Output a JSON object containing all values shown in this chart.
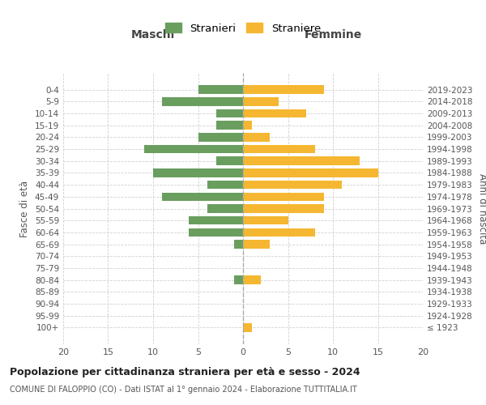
{
  "age_groups": [
    "100+",
    "95-99",
    "90-94",
    "85-89",
    "80-84",
    "75-79",
    "70-74",
    "65-69",
    "60-64",
    "55-59",
    "50-54",
    "45-49",
    "40-44",
    "35-39",
    "30-34",
    "25-29",
    "20-24",
    "15-19",
    "10-14",
    "5-9",
    "0-4"
  ],
  "birth_years": [
    "≤ 1923",
    "1924-1928",
    "1929-1933",
    "1934-1938",
    "1939-1943",
    "1944-1948",
    "1949-1953",
    "1954-1958",
    "1959-1963",
    "1964-1968",
    "1969-1973",
    "1974-1978",
    "1979-1983",
    "1984-1988",
    "1989-1993",
    "1994-1998",
    "1999-2003",
    "2004-2008",
    "2009-2013",
    "2014-2018",
    "2019-2023"
  ],
  "maschi": [
    0,
    0,
    0,
    0,
    1,
    0,
    0,
    1,
    6,
    6,
    4,
    9,
    4,
    10,
    3,
    11,
    5,
    3,
    3,
    9,
    5
  ],
  "femmine": [
    1,
    0,
    0,
    0,
    2,
    0,
    0,
    3,
    8,
    5,
    9,
    9,
    11,
    15,
    13,
    8,
    3,
    1,
    7,
    4,
    9
  ],
  "color_maschi": "#6a9e5f",
  "color_femmine": "#f5b731",
  "background_color": "#ffffff",
  "grid_color": "#cccccc",
  "title": "Popolazione per cittadinanza straniera per età e sesso - 2024",
  "subtitle": "COMUNE DI FALOPPIO (CO) - Dati ISTAT al 1° gennaio 2024 - Elaborazione TUTTITALIA.IT",
  "label_maschi": "Maschi",
  "label_femmine": "Femmine",
  "ylabel_left": "Fasce di età",
  "ylabel_right": "Anni di nascita",
  "legend_maschi": "Stranieri",
  "legend_femmine": "Straniere",
  "xlim": 20,
  "bar_height": 0.72
}
